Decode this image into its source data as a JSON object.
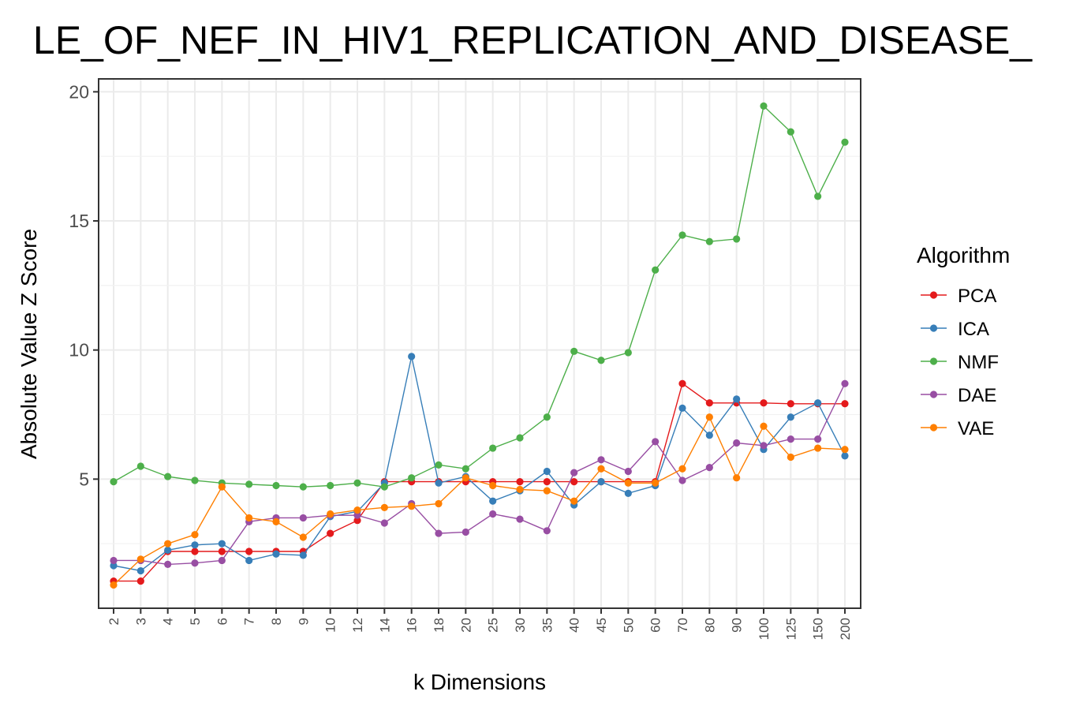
{
  "chart_data": {
    "type": "line",
    "title": "LE_OF_NEF_IN_HIV1_REPLICATION_AND_DISEASE_",
    "xlabel": "k Dimensions",
    "ylabel": "Absolute Value Z Score",
    "categories": [
      "2",
      "3",
      "4",
      "5",
      "6",
      "7",
      "8",
      "9",
      "10",
      "12",
      "14",
      "16",
      "18",
      "20",
      "25",
      "30",
      "35",
      "40",
      "45",
      "50",
      "60",
      "70",
      "80",
      "90",
      "100",
      "125",
      "150",
      "200"
    ],
    "ylim": [
      0.0,
      20.5
    ],
    "yticks": [
      5,
      10,
      15,
      20
    ],
    "grid": true,
    "legend": {
      "title": "Algorithm",
      "placement": "right"
    },
    "series": [
      {
        "name": "PCA",
        "color": "#E41A1C",
        "values": [
          1.05,
          1.05,
          2.2,
          2.2,
          2.2,
          2.2,
          2.2,
          2.2,
          2.9,
          3.4,
          4.9,
          4.9,
          4.9,
          4.9,
          4.9,
          4.9,
          4.9,
          4.9,
          4.9,
          4.9,
          4.9,
          8.7,
          7.95,
          7.95,
          7.95,
          7.92,
          7.92,
          7.92
        ]
      },
      {
        "name": "ICA",
        "color": "#377EB8",
        "values": [
          1.65,
          1.45,
          2.25,
          2.45,
          2.5,
          1.85,
          2.1,
          2.05,
          3.55,
          3.75,
          4.85,
          9.75,
          4.85,
          5.1,
          4.15,
          4.55,
          5.3,
          4.0,
          4.9,
          4.45,
          4.75,
          7.75,
          6.7,
          8.1,
          6.15,
          7.4,
          7.95,
          5.9
        ]
      },
      {
        "name": "NMF",
        "color": "#4DAF4A",
        "values": [
          4.9,
          5.5,
          5.1,
          4.95,
          4.85,
          4.8,
          4.75,
          4.7,
          4.75,
          4.85,
          4.7,
          5.05,
          5.55,
          5.4,
          6.2,
          6.6,
          7.4,
          9.95,
          9.6,
          9.9,
          13.1,
          14.45,
          14.2,
          14.3,
          19.45,
          18.45,
          15.95,
          18.05
        ]
      },
      {
        "name": "DAE",
        "color": "#984EA3",
        "values": [
          1.85,
          1.85,
          1.7,
          1.75,
          1.85,
          3.35,
          3.5,
          3.5,
          3.6,
          3.6,
          3.3,
          4.05,
          2.9,
          2.95,
          3.65,
          3.45,
          3.0,
          5.25,
          5.75,
          5.3,
          6.45,
          4.95,
          5.45,
          6.4,
          6.3,
          6.55,
          6.55,
          8.7
        ]
      },
      {
        "name": "VAE",
        "color": "#FF7F00",
        "values": [
          0.9,
          1.9,
          2.5,
          2.85,
          4.7,
          3.5,
          3.35,
          2.75,
          3.65,
          3.8,
          3.9,
          3.95,
          4.05,
          5.05,
          4.75,
          4.6,
          4.55,
          4.15,
          5.4,
          4.85,
          4.85,
          5.4,
          7.4,
          5.05,
          7.05,
          5.85,
          6.2,
          6.15
        ]
      }
    ]
  }
}
